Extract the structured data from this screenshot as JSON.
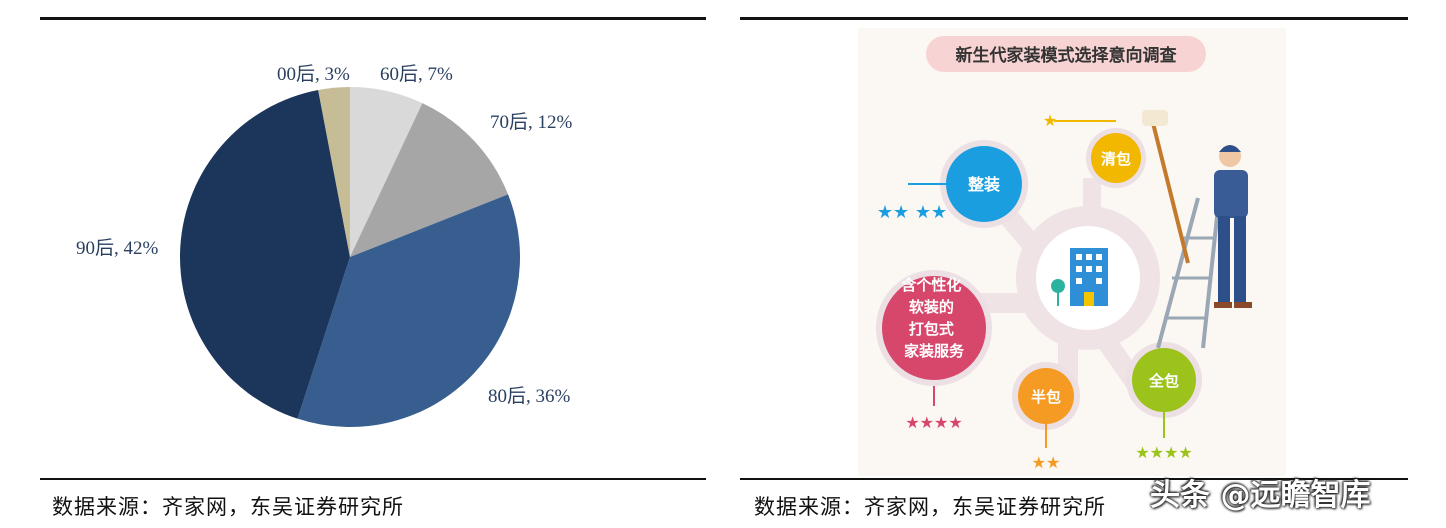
{
  "chart_data": {
    "type": "pie",
    "categories": [
      "60后",
      "70后",
      "80后",
      "90后",
      "00后"
    ],
    "values": [
      7,
      12,
      36,
      42,
      3
    ],
    "labels": [
      "60后, 7%",
      "70后, 12%",
      "80后, 36%",
      "90后, 42%",
      "00后, 3%"
    ],
    "colors": [
      "#d9d9d9",
      "#a6a6a6",
      "#375e8f",
      "#1b365a",
      "#c6bd97"
    ],
    "start_angle_deg": 0,
    "direction": "clockwise"
  },
  "left_panel": {
    "source": "数据来源：齐家网，东吴证券研究所"
  },
  "right_panel": {
    "source": "数据来源：齐家网，东吴证券研究所",
    "infographic": {
      "title": "新生代家装模式选择意向调查",
      "options": [
        {
          "label": "整装",
          "stars": "★★ ★★",
          "color": "#1a9ee0"
        },
        {
          "label": "清包",
          "stars": "★",
          "color": "#f2b800"
        },
        {
          "label": "含个性化软装的打包式家装服务",
          "stars": "★★★★",
          "color": "#d6476b"
        },
        {
          "label": "半包",
          "stars": "★★",
          "color": "#f59b23"
        },
        {
          "label": "全包",
          "stars": "★★★★",
          "color": "#9bc31c"
        }
      ]
    },
    "watermark": "头条 @远瞻智库"
  }
}
